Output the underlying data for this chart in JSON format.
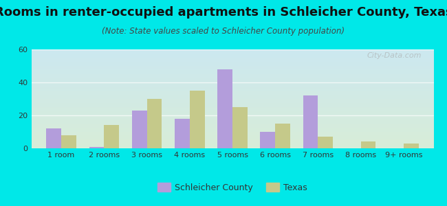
{
  "title": "Rooms in renter-occupied apartments in Schleicher County, Texas",
  "subtitle": "(Note: State values scaled to Schleicher County population)",
  "categories": [
    "1 room",
    "2 rooms",
    "3 rooms",
    "4 rooms",
    "5 rooms",
    "6 rooms",
    "7 rooms",
    "8 rooms",
    "9+ rooms"
  ],
  "schleicher_values": [
    12,
    1,
    23,
    18,
    48,
    10,
    32,
    0,
    0
  ],
  "texas_values": [
    8,
    14,
    30,
    35,
    25,
    15,
    7,
    4,
    3
  ],
  "schleicher_color": "#b39ddb",
  "texas_color": "#c5c98a",
  "background_outer": "#00e8e8",
  "background_plot_top": "#cce8f0",
  "background_plot_bottom": "#d8edd8",
  "ylim": [
    0,
    60
  ],
  "yticks": [
    0,
    20,
    40,
    60
  ],
  "bar_width": 0.35,
  "title_fontsize": 13,
  "subtitle_fontsize": 8.5,
  "tick_fontsize": 8,
  "legend_labels": [
    "Schleicher County",
    "Texas"
  ],
  "watermark": "City-Data.com"
}
